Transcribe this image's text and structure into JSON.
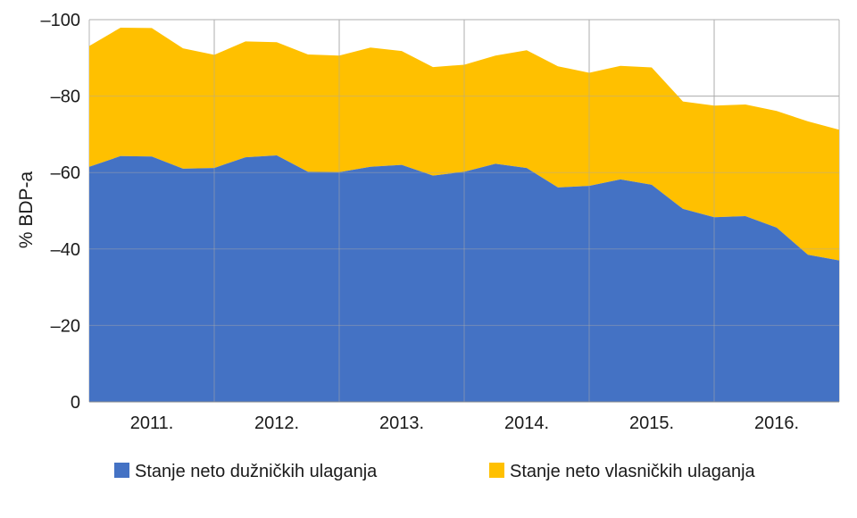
{
  "chart_data": {
    "type": "area",
    "stacked": true,
    "ylabel": "% BDP-a",
    "ylim": [
      0,
      -100
    ],
    "y_ticks": [
      0,
      -20,
      -40,
      -60,
      -80,
      -100
    ],
    "y_tick_labels": [
      "0",
      "–20",
      "–40",
      "–60",
      "–80",
      "–100"
    ],
    "year_labels": [
      "2011.",
      "2012.",
      "2013.",
      "2014.",
      "2015.",
      "2016."
    ],
    "x": [
      "2010Q4",
      "2011Q1",
      "2011Q2",
      "2011Q3",
      "2011Q4",
      "2012Q1",
      "2012Q2",
      "2012Q3",
      "2012Q4",
      "2013Q1",
      "2013Q2",
      "2013Q3",
      "2013Q4",
      "2014Q1",
      "2014Q2",
      "2014Q3",
      "2014Q4",
      "2015Q1",
      "2015Q2",
      "2015Q3",
      "2015Q4",
      "2016Q1",
      "2016Q2",
      "2016Q3",
      "2016Q4"
    ],
    "series": [
      {
        "name": "Stanje neto dužničkih ulaganja",
        "color": "#4472C4",
        "values": [
          -61.5,
          -64.3,
          -64.2,
          -61.0,
          -61.2,
          -64.0,
          -64.5,
          -60.2,
          -60.1,
          -61.5,
          -62.0,
          -59.2,
          -60.2,
          -62.3,
          -61.2,
          -56.1,
          -56.5,
          -58.2,
          -56.8,
          -50.5,
          -48.3,
          -48.6,
          -45.6,
          -38.5,
          -37.0
        ]
      },
      {
        "name": "Stanje neto vlasničkih ulaganja",
        "color": "#FFC000",
        "values": [
          -31.6,
          -33.6,
          -33.6,
          -31.5,
          -29.6,
          -30.3,
          -29.6,
          -30.7,
          -30.5,
          -31.2,
          -29.8,
          -28.4,
          -28.0,
          -28.3,
          -30.8,
          -31.7,
          -29.6,
          -29.7,
          -30.7,
          -28.1,
          -29.2,
          -29.2,
          -30.5,
          -34.9,
          -34.2
        ]
      }
    ],
    "grid": true,
    "legend_position": "bottom"
  }
}
